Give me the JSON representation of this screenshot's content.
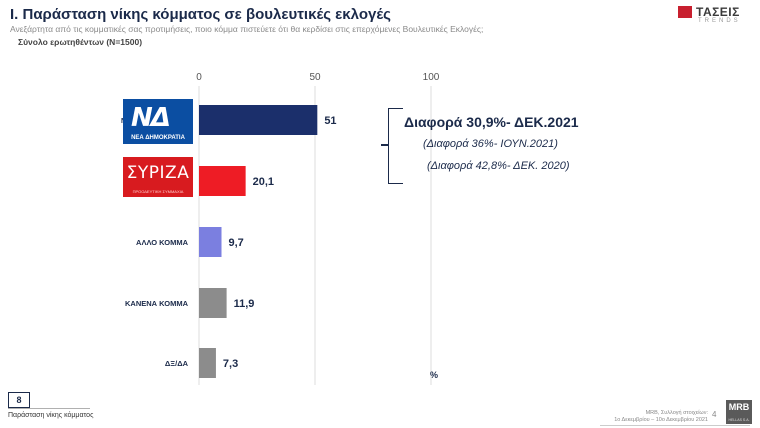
{
  "header": {
    "title": "I. Παράσταση νίκης κόμματος σε βουλευτικές εκλογές",
    "subtitle": "Ανεξάρτητα από τις κομματικές σας προτιμήσεις, ποιο κόμμα πιστεύετε ότι θα κερδίσει στις επερχόμενες Βουλευτικές Εκλογές;",
    "sample": "Σύνολο ερωτηθέντων (N=1500)"
  },
  "brand": {
    "name": "ΤΑΣΕΙΣ",
    "sub": "TRENDS",
    "accent": "#c8202f"
  },
  "logos": {
    "nd_text": "ΝΕΑ ΔΗΜΟΚΡΑΤΙΑ",
    "nd_mark": "ΝΔ",
    "syriza_text": "ΣΥΡΙΖΑ",
    "syriza_sub": "ΠΡΟΟΔΕΥΤΙΚΗ ΣΥΜΜΑΧΙΑ",
    "nd_side_label": "Ν"
  },
  "annotations": {
    "diff_main": "Διαφορά 30,9%- ΔΕΚ.2021",
    "diff_2": "(Διαφορά 36%- ΙΟΥΝ.2021)",
    "diff_3": "(Διαφορά 42,8%- ΔΕΚ. 2020)",
    "unit": "%"
  },
  "chart_data": {
    "type": "bar",
    "orientation": "horizontal",
    "categories": [
      "ΝΕΑ ΔΗΜΟΚΡΑΤΙΑ",
      "ΣΥΡΙΖΑ",
      "ΑΛΛΟ ΚΟΜΜΑ",
      "ΚΑΝΕΝΑ ΚΟΜΜΑ",
      "ΔΞ/ΔΑ"
    ],
    "category_labels_shown": [
      "",
      "",
      "ΑΛΛΟ ΚΟΜΜΑ",
      "ΚΑΝΕΝΑ ΚΟΜΜΑ",
      "ΔΞ/ΔΑ"
    ],
    "values": [
      51,
      20.1,
      9.7,
      11.9,
      7.3
    ],
    "value_labels": [
      "51",
      "20,1",
      "9,7",
      "11,9",
      "7,3"
    ],
    "colors": [
      "#1b2f6b",
      "#ee1c25",
      "#7b7fe0",
      "#8c8c8c",
      "#8c8c8c"
    ],
    "xlim": [
      0,
      100
    ],
    "xticks": [
      "0",
      "50",
      "100"
    ],
    "xtick_values": [
      0,
      50,
      100
    ],
    "grid": true,
    "legend": "none"
  },
  "footer": {
    "page_box": "8",
    "left_text": "Παράσταση νίκης κόμματος",
    "right_line1": "MRB, Συλλογή στοιχείων:",
    "right_line2": "1ο Δεκεμβρίου – 10ο Δεκεμβρίου 2021",
    "page_num": "4",
    "mrb": "MRB",
    "mrb_sub": "HELLAS S.A."
  }
}
